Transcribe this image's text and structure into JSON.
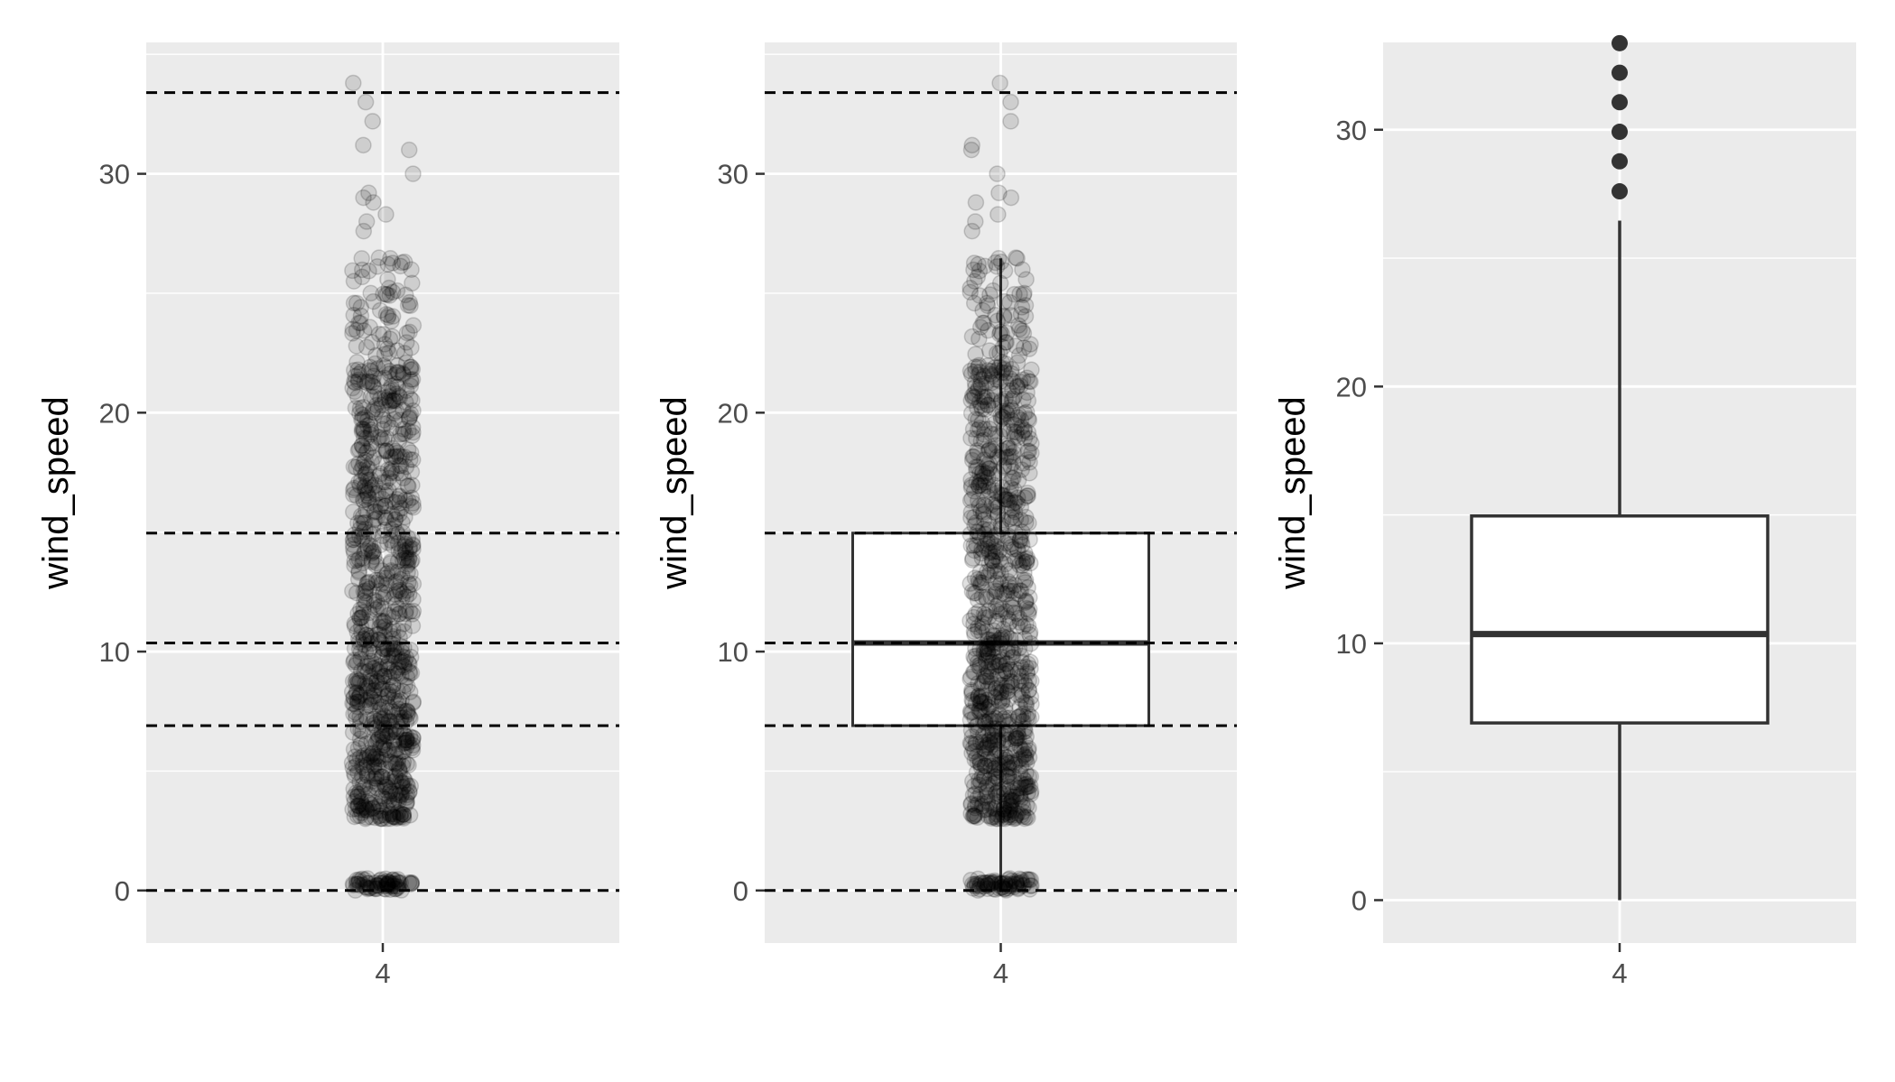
{
  "colors": {
    "panel_background": "#EBEBEB",
    "grid_line": "#FFFFFF",
    "point": "#000000",
    "box_stroke": "#333333",
    "hline": "#000000"
  },
  "chart_data": [
    {
      "type": "scatter",
      "subtype": "jittered strip plot with dashed reference lines",
      "x_category": "4",
      "ylabel": "wind_speed",
      "xlabel": "",
      "ylim": [
        -2.2,
        35.5
      ],
      "yticks": [
        0,
        10,
        20,
        30
      ],
      "ytick_labels": [
        "0",
        "10",
        "20",
        "30"
      ],
      "xtick_labels": [
        "4"
      ],
      "grid": true,
      "point_alpha": 0.12,
      "points_note": "approx. 1000 observations, dense between 3 and 22, cluster near 0, sparse up to 34",
      "reference_lines": [
        0,
        6.9,
        10.36,
        14.96,
        33.4
      ],
      "reference_line_style": "dashed"
    },
    {
      "type": "scatter",
      "subtype": "jittered strip plot overlaid with box plot and dashed reference lines",
      "x_category": "4",
      "ylabel": "wind_speed",
      "xlabel": "",
      "ylim": [
        -2.2,
        35.5
      ],
      "yticks": [
        0,
        10,
        20,
        30
      ],
      "ytick_labels": [
        "0",
        "10",
        "20",
        "30"
      ],
      "xtick_labels": [
        "4"
      ],
      "grid": true,
      "point_alpha": 0.12,
      "box": {
        "min": 0,
        "q1": 6.9,
        "median": 10.36,
        "q3": 14.96,
        "upper_whisker": 26.46,
        "show_outliers": false
      },
      "reference_lines": [
        0,
        6.9,
        10.36,
        14.96,
        33.4
      ],
      "reference_line_style": "dashed"
    },
    {
      "type": "box",
      "x_category": "4",
      "ylabel": "wind_speed",
      "xlabel": "",
      "ylim": [
        -1.67,
        33.4
      ],
      "yticks": [
        0,
        10,
        20,
        30
      ],
      "ytick_labels": [
        "0",
        "10",
        "20",
        "30"
      ],
      "xtick_labels": [
        "4"
      ],
      "grid": true,
      "box": {
        "min": 0,
        "q1": 6.9,
        "median": 10.36,
        "q3": 14.96,
        "upper_whisker": 26.46
      },
      "outliers": [
        27.6,
        28.77,
        29.92,
        31.07,
        32.22,
        33.37
      ]
    }
  ]
}
